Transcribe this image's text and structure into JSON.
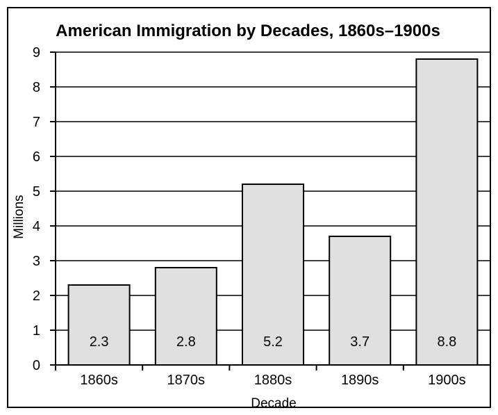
{
  "chart_data": {
    "type": "bar",
    "title": "American Immigration by Decades, 1860s–1900s",
    "xlabel": "Decade",
    "ylabel": "Millions",
    "categories": [
      "1860s",
      "1870s",
      "1880s",
      "1890s",
      "1900s"
    ],
    "values": [
      2.3,
      2.8,
      5.2,
      3.7,
      8.8
    ],
    "data_labels": [
      "2.3",
      "2.8",
      "5.2",
      "3.7",
      "8.8"
    ],
    "ylim": [
      0,
      9
    ],
    "yticks": [
      0,
      1,
      2,
      3,
      4,
      5,
      6,
      7,
      8,
      9
    ],
    "grid": true,
    "bar_color": "#e0e0e0",
    "line_color": "#000000"
  }
}
